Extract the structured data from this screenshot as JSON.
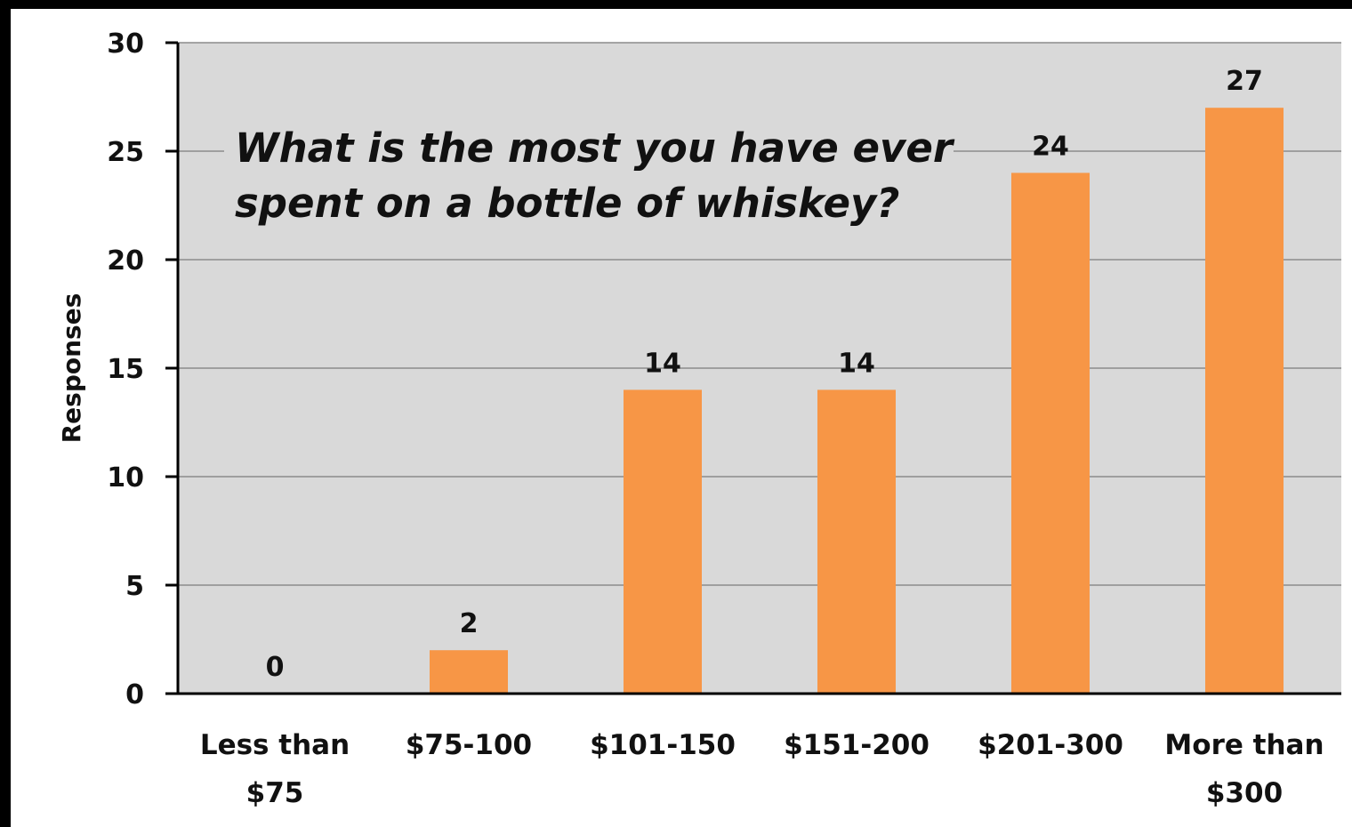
{
  "chart_data": {
    "type": "bar",
    "title": "What is the most you have ever spent on a bottle of whiskey?",
    "title_lines": [
      "What is the most you have ever",
      "spent on a bottle of whiskey?"
    ],
    "xlabel": "",
    "ylabel": "Responses",
    "categories": [
      "Less than $75",
      "$75-100",
      "$101-150",
      "$151-200",
      "$201-300",
      "More than $300"
    ],
    "category_lines": [
      [
        "Less than",
        "$75"
      ],
      [
        "$75-100"
      ],
      [
        "$101-150"
      ],
      [
        "$151-200"
      ],
      [
        "$201-300"
      ],
      [
        "More than",
        "$300"
      ]
    ],
    "values": [
      0,
      2,
      14,
      14,
      24,
      27
    ],
    "data_labels": [
      "0",
      "2",
      "14",
      "14",
      "24",
      "27"
    ],
    "ylim": [
      0,
      30
    ],
    "yticks": [
      0,
      5,
      10,
      15,
      20,
      25,
      30
    ],
    "grid": true,
    "legend": "none",
    "colors": {
      "bar": "#F79646",
      "plot_background": "#D9D9D9",
      "gridline": "#8C8C8C",
      "axis": "#000000",
      "page_border": "#000000"
    }
  }
}
